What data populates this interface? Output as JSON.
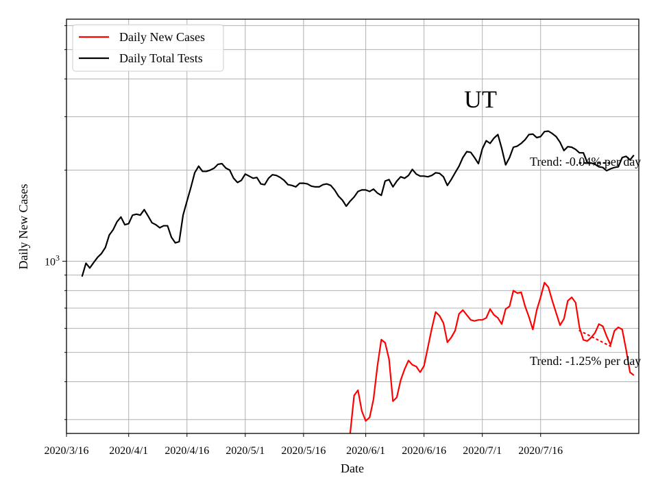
{
  "chart_data": {
    "type": "line",
    "title": "",
    "xlabel": "Date",
    "ylabel": "Daily New Cases",
    "yscale": "log",
    "ylim": [
      270,
      6300
    ],
    "xlim": [
      "2020/3/16",
      "2020/8/3"
    ],
    "x_tick_labels": [
      "2020/3/16",
      "2020/4/1",
      "2020/4/16",
      "2020/5/1",
      "2020/5/16",
      "2020/6/1",
      "2020/6/16",
      "2020/7/1",
      "2020/7/16"
    ],
    "x_ticks": [
      "2020-03-16",
      "2020-04-01",
      "2020-04-16",
      "2020-05-01",
      "2020-05-16",
      "2020-06-01",
      "2020-06-16",
      "2020-07-01",
      "2020-07-16"
    ],
    "y_tick_label": "10^3",
    "y_tick_value": 1000,
    "grid": true,
    "legend_position": "top-left",
    "annotations": {
      "state": "UT",
      "tests_trend": "Trend: -0.04% per day",
      "cases_trend": "Trend: -1.25% per day"
    },
    "series": [
      {
        "name": "Daily New Cases",
        "color": "#ff0000",
        "x_start": "2020-05-28",
        "values": [
          270,
          360,
          375,
          320,
          297,
          305,
          350,
          450,
          551,
          538,
          475,
          345,
          355,
          405,
          440,
          470,
          455,
          449,
          430,
          451,
          520,
          600,
          680,
          660,
          625,
          540,
          560,
          590,
          670,
          690,
          665,
          640,
          635,
          640,
          640,
          650,
          695,
          665,
          650,
          620,
          695,
          710,
          800,
          785,
          790,
          710,
          655,
          595,
          690,
          760,
          850,
          820,
          740,
          675,
          615,
          645,
          740,
          760,
          730,
          605,
          550,
          545,
          560,
          580,
          620,
          610,
          565,
          530,
          590,
          605,
          595,
          510,
          430,
          420
        ]
      },
      {
        "name": "Daily Total Tests",
        "color": "#000000",
        "x_start": "2020-03-20",
        "values": [
          890,
          985,
          950,
          990,
          1030,
          1060,
          1110,
          1220,
          1270,
          1350,
          1400,
          1320,
          1330,
          1420,
          1430,
          1420,
          1480,
          1410,
          1340,
          1320,
          1290,
          1310,
          1310,
          1200,
          1150,
          1160,
          1420,
          1580,
          1750,
          1960,
          2060,
          1980,
          1980,
          2000,
          2030,
          2090,
          2100,
          2030,
          2000,
          1880,
          1820,
          1850,
          1940,
          1910,
          1880,
          1890,
          1800,
          1790,
          1880,
          1930,
          1920,
          1890,
          1850,
          1790,
          1780,
          1760,
          1810,
          1810,
          1800,
          1770,
          1760,
          1760,
          1790,
          1800,
          1780,
          1720,
          1640,
          1590,
          1520,
          1580,
          1630,
          1700,
          1720,
          1720,
          1700,
          1730,
          1680,
          1650,
          1840,
          1860,
          1760,
          1840,
          1900,
          1880,
          1920,
          2010,
          1940,
          1910,
          1910,
          1900,
          1920,
          1960,
          1950,
          1900,
          1780,
          1860,
          1960,
          2060,
          2200,
          2300,
          2290,
          2200,
          2100,
          2350,
          2500,
          2450,
          2550,
          2620,
          2360,
          2080,
          2200,
          2380,
          2400,
          2450,
          2520,
          2620,
          2630,
          2560,
          2580,
          2680,
          2690,
          2640,
          2580,
          2470,
          2320,
          2390,
          2380,
          2340,
          2280,
          2280,
          2120,
          2110,
          2090,
          2050,
          2040,
          1990,
          2020,
          2040,
          2050,
          2200,
          2220,
          2160,
          2240
        ]
      }
    ],
    "trend_lines": [
      {
        "series": "Daily Total Tests",
        "x_start": "2020-07-26",
        "x_end": "2020-08-03",
        "y_start": 2111,
        "y_end": 2111
      },
      {
        "series": "Daily New Cases",
        "x_start": "2020-07-26",
        "x_end": "2020-08-03",
        "y_start": 590,
        "y_end": 524
      }
    ]
  }
}
